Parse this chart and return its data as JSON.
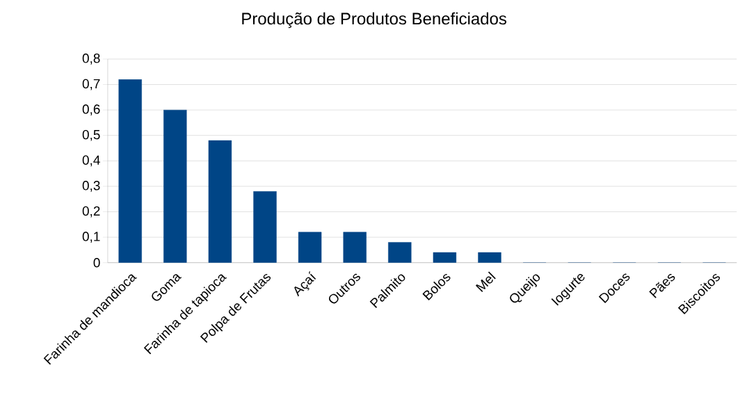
{
  "chart_data": {
    "type": "bar",
    "title": "Produção de Produtos Beneficiados",
    "categories": [
      "Farinha de mandioca",
      "Goma",
      "Farinha de tapioca",
      "Polpa de Frutas",
      "Açaí",
      "Outros",
      "Palmito",
      "Bolos",
      "Mel",
      "Queijo",
      "Iogurte",
      "Doces",
      "Pães",
      "Biscoitos"
    ],
    "values": [
      0.72,
      0.6,
      0.48,
      0.28,
      0.12,
      0.12,
      0.08,
      0.04,
      0.04,
      0,
      0,
      0,
      0,
      0
    ],
    "color": "#004586",
    "ylim": [
      0,
      0.8
    ],
    "yticks": [
      0,
      {
        "value": 0.1,
        "label": "0,1"
      },
      {
        "value": 0.2,
        "label": "0,2"
      },
      {
        "value": 0.3,
        "label": "0,3"
      },
      {
        "value": 0.4,
        "label": "0,4"
      },
      {
        "value": 0.5,
        "label": "0,5"
      },
      {
        "value": 0.6,
        "label": "0,6"
      },
      {
        "value": 0.7,
        "label": "0,7"
      },
      {
        "value": 0.8,
        "label": "0,8"
      }
    ],
    "grid": true
  }
}
